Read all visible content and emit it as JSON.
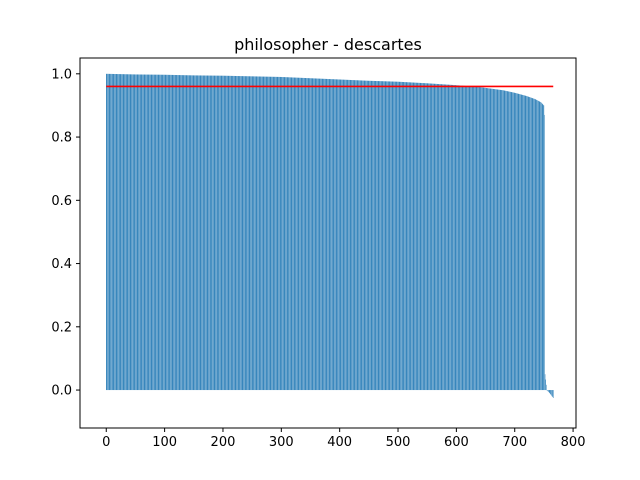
{
  "chart_data": {
    "type": "bar",
    "title": "philosopher - descartes",
    "xlabel": "",
    "ylabel": "",
    "xlim": [
      -45,
      805
    ],
    "ylim": [
      -0.12,
      1.05
    ],
    "xticks": [
      0,
      100,
      200,
      300,
      400,
      500,
      600,
      700,
      800
    ],
    "yticks": [
      0.0,
      0.2,
      0.4,
      0.6,
      0.8,
      1.0
    ],
    "xtick_labels": [
      "0",
      "100",
      "200",
      "300",
      "400",
      "500",
      "600",
      "700",
      "800"
    ],
    "ytick_labels": [
      "0.0",
      "0.2",
      "0.4",
      "0.6",
      "0.8",
      "1.0"
    ],
    "grid": false,
    "bar_color": "#1f77b4",
    "series": [
      {
        "values_curve": {
          "count": 767,
          "keypoints": [
            [
              0,
              1.0
            ],
            [
              50,
              0.998
            ],
            [
              100,
              0.997
            ],
            [
              150,
              0.995
            ],
            [
              200,
              0.994
            ],
            [
              250,
              0.992
            ],
            [
              300,
              0.99
            ],
            [
              350,
              0.986
            ],
            [
              400,
              0.982
            ],
            [
              450,
              0.978
            ],
            [
              500,
              0.975
            ],
            [
              550,
              0.97
            ],
            [
              600,
              0.964
            ],
            [
              640,
              0.958
            ],
            [
              680,
              0.948
            ],
            [
              700,
              0.94
            ],
            [
              720,
              0.93
            ],
            [
              735,
              0.92
            ],
            [
              745,
              0.91
            ],
            [
              750,
              0.9
            ],
            [
              751,
              0.87
            ],
            [
              752,
              0.05
            ],
            [
              755,
              0.0
            ],
            [
              760,
              -0.01
            ],
            [
              766,
              -0.025
            ]
          ]
        }
      }
    ],
    "hline": {
      "y": 0.96,
      "x": [
        0,
        766
      ],
      "color": "#ff0000"
    }
  }
}
